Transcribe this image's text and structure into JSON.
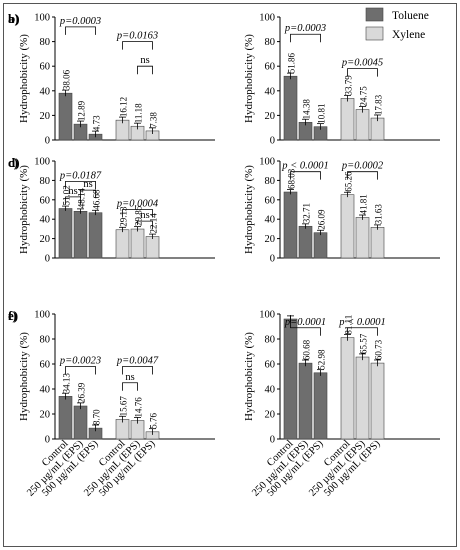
{
  "legend": {
    "position": "top-right",
    "items": [
      {
        "label": "Toluene",
        "color": "#6e6e6e"
      },
      {
        "label": "Xylene",
        "color": "#d9d9d9"
      }
    ]
  },
  "chart_data": [
    {
      "type": "bar",
      "panel_label": "a)",
      "ylabel": "Hydrophobicity (%)",
      "ylim": [
        0,
        100
      ],
      "yticks": [
        0,
        20,
        40,
        60,
        80,
        100
      ],
      "categories": [
        "Control",
        "250 µg/mL (EPS)",
        "500 µg/mL (EPS)"
      ],
      "show_xticklabels": false,
      "series": [
        {
          "name": "Toluene",
          "values": [
            38.06,
            12.89,
            4.73
          ],
          "labels": [
            "38.06",
            "12.89",
            "4.73"
          ]
        },
        {
          "name": "Xylene",
          "values": [
            16.12,
            11.18,
            7.38
          ],
          "labels": [
            "16.12",
            "11.18",
            "7.38"
          ]
        }
      ],
      "annotations": [
        {
          "group": 0,
          "text": "p=0.0003"
        },
        {
          "group": 1,
          "text": "p=0.0163"
        },
        {
          "group": 1,
          "text": "ns"
        }
      ]
    },
    {
      "type": "bar",
      "panel_label": "b)",
      "ylabel": "Hydrophobicity (%)",
      "ylim": [
        0,
        100
      ],
      "yticks": [
        0,
        20,
        40,
        60,
        80,
        100
      ],
      "categories": [
        "Control",
        "250 µg/mL (EPS)",
        "500 µg/mL (EPS)"
      ],
      "show_xticklabels": false,
      "series": [
        {
          "name": "Toluene",
          "values": [
            51.86,
            14.38,
            10.81
          ],
          "labels": [
            "51.86",
            "14.38",
            "10.81"
          ]
        },
        {
          "name": "Xylene",
          "values": [
            33.79,
            24.75,
            17.83
          ],
          "labels": [
            "33.79",
            "24.75",
            "17.83"
          ]
        }
      ],
      "annotations": [
        {
          "group": 0,
          "text": "p=0.0003"
        },
        {
          "group": 1,
          "text": "p=0.0045"
        }
      ]
    },
    {
      "type": "bar",
      "panel_label": "c)",
      "ylabel": "Hydrophobicity (%)",
      "ylim": [
        0,
        100
      ],
      "yticks": [
        0,
        20,
        40,
        60,
        80,
        100
      ],
      "categories": [
        "Control",
        "250 µg/mL (EPS)",
        "500 µg/mL (EPS)"
      ],
      "show_xticklabels": false,
      "series": [
        {
          "name": "Toluene",
          "values": [
            51.02,
            48.14,
            46.68
          ],
          "labels": [
            "51.02",
            "48.14",
            "46.68"
          ]
        },
        {
          "name": "Xylene",
          "values": [
            29.13,
            29.85,
            22.14
          ],
          "labels": [
            "29.13",
            "29.85",
            "22.14"
          ]
        }
      ],
      "annotations": [
        {
          "group": 0,
          "text": "p=0.0187"
        },
        {
          "group": 0,
          "text": "ns"
        },
        {
          "group": 0,
          "text": "ns"
        },
        {
          "group": 1,
          "text": "p=0.0004"
        },
        {
          "group": 1,
          "text": "ns"
        }
      ]
    },
    {
      "type": "bar",
      "panel_label": "d)",
      "ylabel": "Hydrophobicity (%)",
      "ylim": [
        0,
        100
      ],
      "yticks": [
        0,
        20,
        40,
        60,
        80,
        100
      ],
      "categories": [
        "Control",
        "250 µg/mL (EPS)",
        "500 µg/mL (EPS)"
      ],
      "show_xticklabels": false,
      "series": [
        {
          "name": "Toluene",
          "values": [
            68.03,
            32.71,
            26.09
          ],
          "labels": [
            "68.03",
            "32.71",
            "26.09"
          ]
        },
        {
          "name": "Xylene",
          "values": [
            65.26,
            41.81,
            31.63
          ],
          "labels": [
            "65.26",
            "41.81",
            "31.63"
          ]
        }
      ],
      "annotations": [
        {
          "group": 0,
          "text": "p < 0.0001"
        },
        {
          "group": 1,
          "text": "p=0.0002"
        }
      ]
    },
    {
      "type": "bar",
      "panel_label": "e)",
      "ylabel": "Hydrophobicity (%)",
      "ylim": [
        0,
        100
      ],
      "yticks": [
        0,
        20,
        40,
        60,
        80,
        100
      ],
      "categories": [
        "Control",
        "250 µg/mL (EPS)",
        "500 µg/mL (EPS)"
      ],
      "show_xticklabels": true,
      "series": [
        {
          "name": "Toluene",
          "values": [
            34.13,
            26.39,
            8.7
          ],
          "labels": [
            "34.13",
            "26.39",
            "8.70"
          ]
        },
        {
          "name": "Xylene",
          "values": [
            15.67,
            14.76,
            5.76
          ],
          "labels": [
            "15.67",
            "14.76",
            "5.76"
          ]
        }
      ],
      "annotations": [
        {
          "group": 0,
          "text": "p=0.0023"
        },
        {
          "group": 1,
          "text": "p=0.0047"
        },
        {
          "group": 1,
          "text": "ns"
        }
      ]
    },
    {
      "type": "bar",
      "panel_label": "f)",
      "ylabel": "Hydrophobicity (%)",
      "ylim": [
        0,
        100
      ],
      "yticks": [
        0,
        20,
        40,
        60,
        80,
        100
      ],
      "categories": [
        "Control",
        "250 µg/mL (EPS)",
        "500 µg/mL (EPS)"
      ],
      "show_xticklabels": true,
      "series": [
        {
          "name": "Toluene",
          "values": [
            96.0,
            60.68,
            52.98
          ],
          "labels": [
            "",
            "60.68",
            "52.98"
          ]
        },
        {
          "name": "Xylene",
          "values": [
            81.11,
            65.57,
            60.73
          ],
          "labels": [
            "81.11",
            "65.57",
            "60.73"
          ]
        }
      ],
      "annotations": [
        {
          "group": 0,
          "text": "p=0.0001"
        },
        {
          "group": 1,
          "text": "p < 0.0001"
        }
      ]
    }
  ]
}
